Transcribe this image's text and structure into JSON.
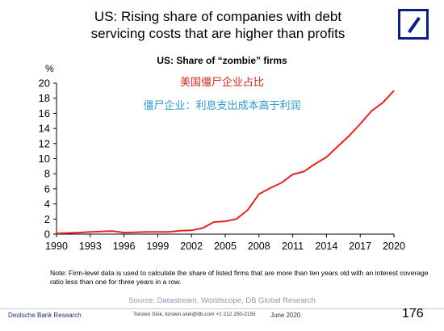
{
  "slide": {
    "title_line1": "US: Rising share of companies with debt",
    "title_line2": "servicing costs that are higher than profits"
  },
  "annotations": {
    "chinese_title": "美国僵尸企业占比",
    "chinese_definition": "僵尸企业：利息支出成本高于利润"
  },
  "note": "Note: Firm-level data is used to calculate the share of listed firms that are more than ten years old with an interest coverage ratio less than one for three years in a row.",
  "source": "Source: Datastream, Worldscope, DB Global Research",
  "footer": {
    "left": "Deutsche Bank Research",
    "contact": "Torsten Slok, torsten.slok@db.com  +1 212 250-2155",
    "date": "June 2020",
    "page": "176"
  },
  "colors": {
    "line": "#e8231f",
    "logo": "#0a1d8f"
  },
  "chart_data": {
    "type": "line",
    "title": "US: Share of “zombie” firms",
    "ylabel": "%",
    "xlabel": "",
    "xlim": [
      1990,
      2020
    ],
    "ylim": [
      0,
      20
    ],
    "x_ticks": [
      1990,
      1993,
      1996,
      1999,
      2002,
      2005,
      2008,
      2011,
      2014,
      2017,
      2020
    ],
    "y_ticks": [
      0,
      2,
      4,
      6,
      8,
      10,
      12,
      14,
      16,
      18,
      20
    ],
    "grid": false,
    "series": [
      {
        "name": "",
        "x": [
          1990,
          1991,
          1992,
          1993,
          1994,
          1995,
          1996,
          1997,
          1998,
          1999,
          2000,
          2001,
          2002,
          2003,
          2004,
          2005,
          2006,
          2007,
          2008,
          2009,
          2010,
          2011,
          2012,
          2013,
          2014,
          2015,
          2016,
          2017,
          2018,
          2019,
          2020
        ],
        "values": [
          0.1,
          0.15,
          0.2,
          0.3,
          0.35,
          0.4,
          0.2,
          0.25,
          0.3,
          0.3,
          0.3,
          0.45,
          0.5,
          0.8,
          1.6,
          1.7,
          2.0,
          3.2,
          5.3,
          6.1,
          6.8,
          7.9,
          8.3,
          9.3,
          10.2,
          11.6,
          13.0,
          14.6,
          16.3,
          17.4,
          19.0
        ]
      }
    ]
  }
}
